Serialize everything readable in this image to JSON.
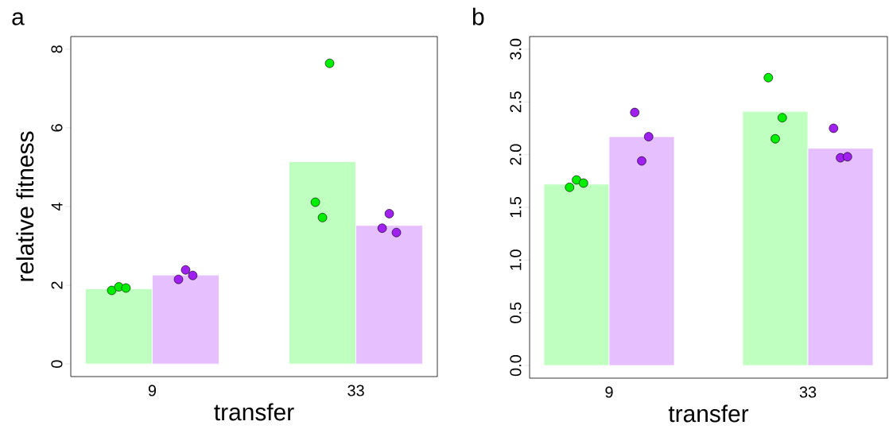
{
  "chart_data": [
    {
      "type": "bar",
      "title": "a",
      "xlabel": "transfer",
      "ylabel": "relative fitness",
      "categories": [
        "9",
        "33"
      ],
      "ylim": [
        -0.32,
        8.32
      ],
      "yticks": [
        0,
        2,
        4,
        6,
        8
      ],
      "grid": false,
      "series": [
        {
          "color": "#bfffbf",
          "values": [
            1.91,
            5.14
          ]
        },
        {
          "color": "#e6bfff",
          "values": [
            2.26,
            3.52
          ]
        },
        {
          "type": "scatter",
          "marker": "circle",
          "color": "#00ee00",
          "x": [
            "9",
            "9",
            "9",
            "33",
            "33",
            "33"
          ],
          "values": [
            1.87,
            1.96,
            1.93,
            4.11,
            3.72,
            7.64
          ]
        },
        {
          "type": "scatter",
          "marker": "circle",
          "color": "#a020f0",
          "x": [
            "9",
            "9",
            "9",
            "33",
            "33",
            "33"
          ],
          "values": [
            2.15,
            2.39,
            2.25,
            3.45,
            3.82,
            3.34
          ]
        }
      ]
    },
    {
      "type": "bar",
      "title": "b",
      "xlabel": "transfer",
      "categories": [
        "9",
        "33"
      ],
      "ylim": [
        -0.12,
        3.12
      ],
      "yticks": [
        {
          "value": 0,
          "label": "0.0"
        },
        0.5,
        {
          "value": 1,
          "label": "1.0"
        },
        1.5,
        {
          "value": 2,
          "label": "2.0"
        },
        2.5,
        {
          "value": 3,
          "label": "3.0"
        }
      ],
      "grid": false,
      "series": [
        {
          "color": "#bfffbf",
          "values": [
            1.72,
            2.41
          ]
        },
        {
          "color": "#e6bfff",
          "values": [
            2.17,
            2.06
          ]
        },
        {
          "type": "scatter",
          "marker": "circle",
          "color": "#00ee00",
          "x": [
            "9",
            "9",
            "9",
            "33",
            "33",
            "33"
          ],
          "values": [
            1.69,
            1.76,
            1.73,
            2.73,
            2.15,
            2.35
          ]
        },
        {
          "type": "scatter",
          "marker": "circle",
          "color": "#a020f0",
          "x": [
            "9",
            "9",
            "9",
            "33",
            "33",
            "33"
          ],
          "values": [
            2.4,
            1.94,
            2.17,
            2.25,
            1.97,
            1.98
          ]
        }
      ]
    }
  ]
}
